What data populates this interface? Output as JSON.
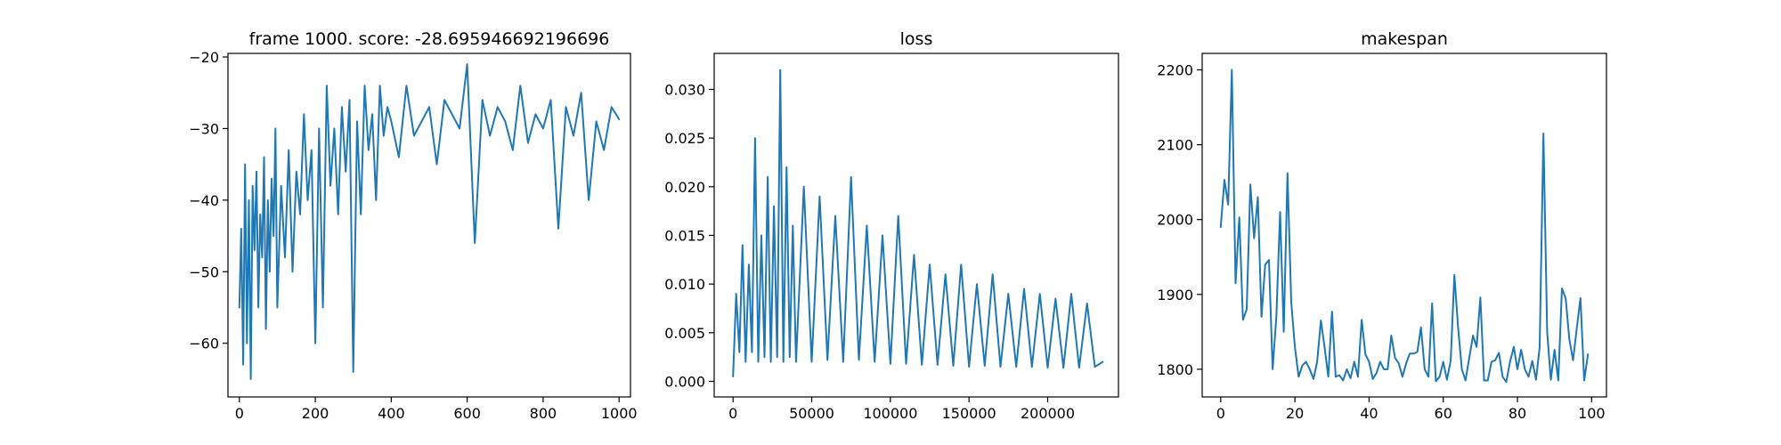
{
  "chart_data": [
    {
      "type": "line",
      "title": "frame 1000. score: -28.695946692196696",
      "xlabel": "",
      "ylabel": "",
      "xlim": [
        -30,
        1030
      ],
      "ylim": [
        -67.5,
        -19.5
      ],
      "xticks": [
        0,
        200,
        400,
        600,
        800,
        1000
      ],
      "xtick_labels": [
        "0",
        "200",
        "400",
        "600",
        "800",
        "1000"
      ],
      "yticks": [
        -60,
        -50,
        -40,
        -30,
        -20
      ],
      "ytick_labels": [
        "−60",
        "−50",
        "−40",
        "−30",
        "−20"
      ],
      "grid": false,
      "color": "#1f77b4",
      "series": [
        {
          "x": [
            0,
            5,
            10,
            15,
            20,
            25,
            30,
            35,
            40,
            45,
            50,
            55,
            60,
            65,
            70,
            75,
            80,
            85,
            90,
            95,
            100,
            110,
            120,
            130,
            140,
            150,
            160,
            170,
            180,
            190,
            200,
            210,
            220,
            230,
            240,
            250,
            260,
            270,
            280,
            290,
            300,
            310,
            320,
            330,
            340,
            350,
            360,
            370,
            380,
            390,
            400,
            420,
            440,
            460,
            480,
            500,
            520,
            540,
            560,
            580,
            600,
            620,
            640,
            660,
            680,
            700,
            720,
            740,
            760,
            780,
            800,
            820,
            840,
            860,
            880,
            900,
            920,
            940,
            960,
            980,
            1000
          ],
          "y": [
            -55,
            -44,
            -63,
            -35,
            -60,
            -40,
            -65,
            -38,
            -47,
            -36,
            -55,
            -42,
            -48,
            -34,
            -58,
            -40,
            -50,
            -37,
            -45,
            -30,
            -55,
            -38,
            -48,
            -33,
            -50,
            -36,
            -42,
            -28,
            -40,
            -33,
            -60,
            -30,
            -55,
            -24,
            -38,
            -30,
            -42,
            -27,
            -36,
            -26,
            -64,
            -29,
            -42,
            -24,
            -33,
            -28,
            -40,
            -24,
            -31,
            -27,
            -29,
            -34,
            -24,
            -31,
            -29,
            -27,
            -35,
            -26,
            -28,
            -30,
            -21,
            -46,
            -26,
            -31,
            -27,
            -29,
            -33,
            -24,
            -32,
            -28,
            -30,
            -26,
            -44,
            -27,
            -31,
            -25,
            -40,
            -29,
            -33,
            -27,
            -28.7
          ]
        }
      ]
    },
    {
      "type": "line",
      "title": "loss",
      "xlabel": "",
      "ylabel": "",
      "xlim": [
        -12000,
        245000
      ],
      "ylim": [
        -0.0016,
        0.0337
      ],
      "xticks": [
        0,
        50000,
        100000,
        150000,
        200000
      ],
      "xtick_labels": [
        "0",
        "50000",
        "100000",
        "150000",
        "200000"
      ],
      "yticks": [
        0.0,
        0.005,
        0.01,
        0.015,
        0.02,
        0.025,
        0.03
      ],
      "ytick_labels": [
        "0.000",
        "0.005",
        "0.010",
        "0.015",
        "0.020",
        "0.025",
        "0.030"
      ],
      "grid": false,
      "color": "#1f77b4",
      "series": [
        {
          "x": [
            0,
            2000,
            4000,
            6000,
            8000,
            10000,
            12000,
            14000,
            16000,
            18000,
            20000,
            22000,
            24000,
            26000,
            28000,
            30000,
            32000,
            34000,
            36000,
            38000,
            40000,
            45000,
            50000,
            55000,
            60000,
            65000,
            70000,
            75000,
            80000,
            85000,
            90000,
            95000,
            100000,
            105000,
            110000,
            115000,
            120000,
            125000,
            130000,
            135000,
            140000,
            145000,
            150000,
            155000,
            160000,
            165000,
            170000,
            175000,
            180000,
            185000,
            190000,
            195000,
            200000,
            205000,
            210000,
            215000,
            220000,
            225000,
            230000,
            235000
          ],
          "y": [
            0.0005,
            0.009,
            0.003,
            0.014,
            0.002,
            0.012,
            0.003,
            0.025,
            0.002,
            0.015,
            0.0025,
            0.021,
            0.002,
            0.018,
            0.0025,
            0.032,
            0.002,
            0.022,
            0.0025,
            0.016,
            0.002,
            0.02,
            0.002,
            0.019,
            0.0022,
            0.017,
            0.002,
            0.021,
            0.0022,
            0.016,
            0.002,
            0.015,
            0.0018,
            0.017,
            0.0018,
            0.013,
            0.0017,
            0.012,
            0.0017,
            0.011,
            0.0016,
            0.012,
            0.0015,
            0.01,
            0.0016,
            0.011,
            0.0015,
            0.009,
            0.0015,
            0.0095,
            0.0015,
            0.009,
            0.0014,
            0.0085,
            0.0014,
            0.009,
            0.0014,
            0.008,
            0.0015,
            0.002
          ]
        }
      ]
    },
    {
      "type": "line",
      "title": "makespan",
      "xlabel": "",
      "ylabel": "",
      "xlim": [
        -5,
        104
      ],
      "ylim": [
        1763,
        2222
      ],
      "xticks": [
        0,
        20,
        40,
        60,
        80,
        100
      ],
      "xtick_labels": [
        "0",
        "20",
        "40",
        "60",
        "80",
        "100"
      ],
      "yticks": [
        1800,
        1900,
        2000,
        2100,
        2200
      ],
      "ytick_labels": [
        "1800",
        "1900",
        "2000",
        "2100",
        "2200"
      ],
      "grid": false,
      "color": "#1f77b4",
      "series": [
        {
          "x": [
            0,
            1,
            2,
            3,
            4,
            5,
            6,
            7,
            8,
            9,
            10,
            11,
            12,
            13,
            14,
            15,
            16,
            17,
            18,
            19,
            20,
            21,
            22,
            23,
            24,
            25,
            26,
            27,
            28,
            29,
            30,
            31,
            32,
            33,
            34,
            35,
            36,
            37,
            38,
            39,
            40,
            41,
            42,
            43,
            44,
            45,
            46,
            47,
            48,
            49,
            50,
            51,
            52,
            53,
            54,
            55,
            56,
            57,
            58,
            59,
            60,
            61,
            62,
            63,
            64,
            65,
            66,
            67,
            68,
            69,
            70,
            71,
            72,
            73,
            74,
            75,
            76,
            77,
            78,
            79,
            80,
            81,
            82,
            83,
            84,
            85,
            86,
            87,
            88,
            89,
            90,
            91,
            92,
            93,
            94,
            95,
            96,
            97,
            98,
            99
          ],
          "y": [
            1990,
            2053,
            2020,
            2200,
            1915,
            2003,
            1866,
            1880,
            2047,
            1975,
            2030,
            1870,
            1940,
            1946,
            1800,
            1870,
            2010,
            1850,
            2062,
            1890,
            1830,
            1790,
            1805,
            1810,
            1800,
            1787,
            1810,
            1865,
            1830,
            1790,
            1877,
            1790,
            1792,
            1785,
            1800,
            1788,
            1810,
            1790,
            1866,
            1820,
            1810,
            1787,
            1795,
            1810,
            1800,
            1800,
            1845,
            1815,
            1808,
            1790,
            1808,
            1821,
            1821,
            1823,
            1856,
            1800,
            1790,
            1888,
            1784,
            1790,
            1810,
            1786,
            1812,
            1926,
            1856,
            1800,
            1785,
            1815,
            1845,
            1830,
            1896,
            1785,
            1785,
            1810,
            1812,
            1822,
            1790,
            1783,
            1810,
            1830,
            1800,
            1826,
            1800,
            1790,
            1811,
            1786,
            1830,
            2115,
            1850,
            1786,
            1826,
            1785,
            1908,
            1895,
            1840,
            1812,
            1855,
            1895,
            1785,
            1820
          ]
        }
      ]
    }
  ]
}
